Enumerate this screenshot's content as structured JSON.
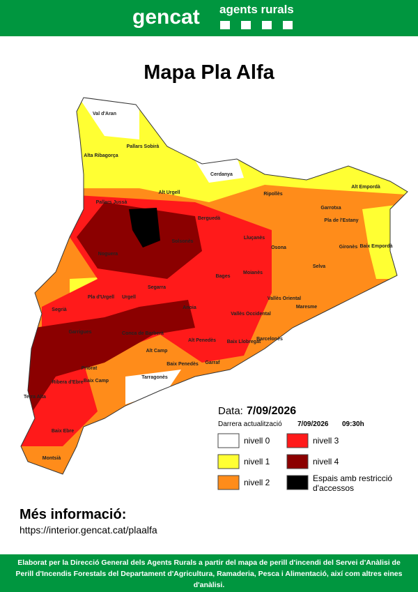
{
  "header": {
    "logo": "gencat",
    "brand": "agents rurals"
  },
  "title": "Mapa Pla Alfa",
  "map": {
    "regions": [
      "Val d'Aran",
      "Pallars Sobirà",
      "Alta Ribagorça",
      "Cerdanya",
      "Alt Urgell",
      "Pallars Jussà",
      "Ripollès",
      "Alt Empordà",
      "Garrotxa",
      "Pla de l'Estany",
      "Berguedà",
      "Solsonès",
      "Noguera",
      "Lluçanès",
      "Osona",
      "Gironès",
      "Baix Empordà",
      "Selva",
      "Bages",
      "Moianès",
      "Segarra",
      "Pla d'Urgell",
      "Urgell",
      "Segrià",
      "Vallès Oriental",
      "Maresme",
      "Anoia",
      "Vallès Occidental",
      "Garrigues",
      "Conca de Barberà",
      "Barcelonès",
      "Baix Llobregat",
      "Alt Penedès",
      "Alt Camp",
      "Garraf",
      "Baix Penedès",
      "Priorat",
      "Ribera d'Ebre",
      "Baix Camp",
      "Tarragonès",
      "Terra Alta",
      "Baix Ebre",
      "Montsià"
    ]
  },
  "date": {
    "label": "Data:",
    "value": "7/09/2026"
  },
  "update": {
    "label": "Darrera actualització",
    "date": "7/09/2026",
    "time": "09:30h"
  },
  "legend": [
    {
      "label": "nivell 0",
      "color": "#ffffff"
    },
    {
      "label": "nivell 1",
      "color": "#ffff33"
    },
    {
      "label": "nivell 2",
      "color": "#ff8c1a"
    },
    {
      "label": "nivell 3",
      "color": "#ff1a1a"
    },
    {
      "label": "nivell 4",
      "color": "#8b0000"
    },
    {
      "label": "Espais amb restricció d'accessos",
      "color": "#000000"
    }
  ],
  "more_info": {
    "title": "Més informació:",
    "url": "https://interior.gencat.cat/plaalfa"
  },
  "footer": "Elaborat per la Direcció General dels Agents Rurals a partir del mapa de perill d'incendi del Servei d'Anàlisi de Perill d'Incendis Forestals del Departament d'Agricultura, Ramaderia, Pesca i Alimentació, així com altres eines d'anàlisi."
}
